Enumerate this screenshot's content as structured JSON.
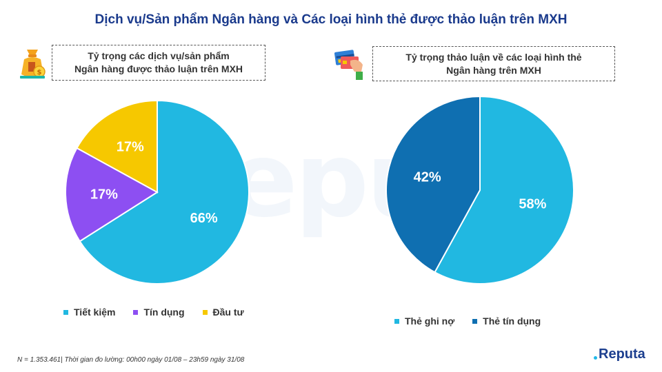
{
  "title": "Dịch vụ/Sản phẩm Ngân hàng và Các loại hình thẻ được thảo luận trên MXH",
  "colors": {
    "cyan": "#21b8e1",
    "purple": "#8d4ff2",
    "yellow": "#f6c800",
    "darkblue": "#0f6fb1",
    "title": "#1a3a8c"
  },
  "icons": [
    "money-bag-icon",
    "credit-card-hand-icon"
  ],
  "watermark": "eputa",
  "chart_data": [
    {
      "type": "pie",
      "title_lines": [
        "Tỷ trọng các dịch vụ/sản phẩm",
        "Ngân hàng được thảo luận trên MXH"
      ],
      "categories": [
        "Tiết kiệm",
        "Tín dụng",
        "Đầu tư"
      ],
      "values": [
        66,
        17,
        17
      ],
      "labels": [
        "66%",
        "17%",
        "17%"
      ],
      "colors": [
        "#21b8e1",
        "#8d4ff2",
        "#f6c800"
      ],
      "legend_position": "bottom"
    },
    {
      "type": "pie",
      "title_lines": [
        "Tỷ trọng thảo luận về các loại hình thẻ",
        "Ngân hàng trên MXH"
      ],
      "categories": [
        "Thẻ ghi nợ",
        "Thẻ tín dụng"
      ],
      "values": [
        58,
        42
      ],
      "labels": [
        "58%",
        "42%"
      ],
      "colors": [
        "#21b8e1",
        "#0f6fb1"
      ],
      "legend_position": "bottom"
    }
  ],
  "footnote": "N = 1.353.461| Thời gian đo lường: 00h00 ngày 01/08 – 23h59 ngày 31/08",
  "brand": "Reputa"
}
